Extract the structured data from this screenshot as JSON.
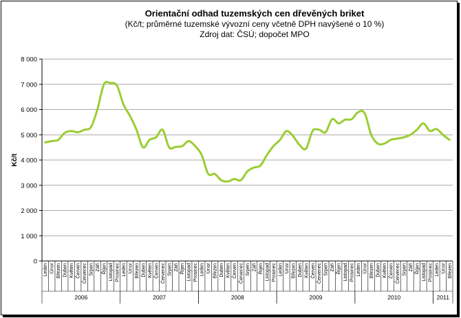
{
  "chart_data": {
    "type": "line",
    "title": "Orientační odhad tuzemských cen dřevěných briket",
    "subtitle": "(Kč/t;  průměrné tuzemské vývozní ceny včetně DPH navýšené o 10 %)",
    "source": "Zdroj dat: ČSÚ; dopočet MPO",
    "ylabel": "Kč/t",
    "ylim": [
      0,
      8000
    ],
    "yticks": [
      0,
      1000,
      2000,
      3000,
      4000,
      5000,
      6000,
      7000,
      8000
    ],
    "ytick_labels": [
      "0",
      "1 000",
      "2 000",
      "3 000",
      "4 000",
      "5 000",
      "6 000",
      "7 000",
      "8 000"
    ],
    "grid": true,
    "line_color": "#9acd32",
    "years": [
      {
        "label": "2006",
        "start": 0,
        "count": 12
      },
      {
        "label": "2007",
        "start": 12,
        "count": 12
      },
      {
        "label": "2008",
        "start": 24,
        "count": 12
      },
      {
        "label": "2009",
        "start": 36,
        "count": 12
      },
      {
        "label": "2010",
        "start": 48,
        "count": 12
      },
      {
        "label": "2011",
        "start": 60,
        "count": 3
      }
    ],
    "categories": [
      "Leden",
      "Únor",
      "Březen",
      "Duben",
      "Květen",
      "Červen",
      "Červenec",
      "Srpen",
      "Září",
      "Říjen",
      "Listopad",
      "Prosinec",
      "Leden",
      "Únor",
      "Březen",
      "Duben",
      "Květen",
      "Červen",
      "Červenec",
      "Srpen",
      "Září",
      "Říjen",
      "Listopad",
      "Prosinec",
      "Leden",
      "Únor",
      "Březen",
      "Duben",
      "Květen",
      "Červen",
      "Červenec",
      "Srpen",
      "Září",
      "Říjen",
      "Listopad",
      "Prosinec",
      "Leden",
      "Únor",
      "Březen",
      "Duben",
      "Květen",
      "Červen",
      "Červenec",
      "Srpen",
      "Září",
      "Říjen",
      "Listopad",
      "Prosinec",
      "Leden",
      "Únor",
      "Březen",
      "Duben",
      "Květen",
      "Červen",
      "Červenec",
      "Srpen",
      "Září",
      "Říjen",
      "Listopad",
      "Prosinec",
      "Leden",
      "Únor",
      "Březen"
    ],
    "values": [
      4700,
      4750,
      4800,
      5080,
      5150,
      5100,
      5200,
      5300,
      6000,
      7000,
      7050,
      6950,
      6200,
      5750,
      5200,
      4500,
      4800,
      4900,
      5200,
      4500,
      4520,
      4550,
      4750,
      4550,
      4200,
      3450,
      3450,
      3200,
      3150,
      3250,
      3200,
      3550,
      3700,
      3780,
      4200,
      4550,
      4800,
      5150,
      4950,
      4600,
      4450,
      5150,
      5200,
      5100,
      5620,
      5450,
      5600,
      5620,
      5900,
      5850,
      5000,
      4650,
      4650,
      4800,
      4850,
      4900,
      5000,
      5200,
      5450,
      5150,
      5230,
      5000,
      4800
    ]
  }
}
